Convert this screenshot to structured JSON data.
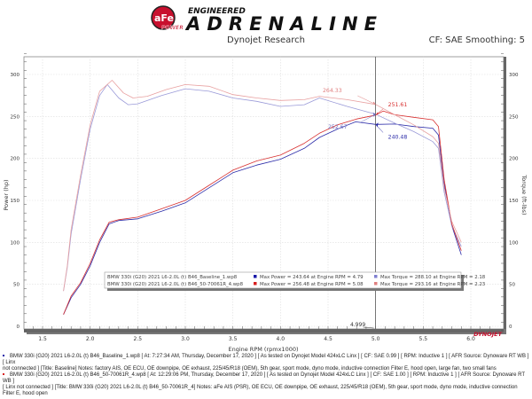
{
  "header": {
    "logo_brand": "aFe POWER",
    "logo_line1": "ENGINEERED",
    "logo_line2": "ADRENALINE",
    "subtitle": "Dynojet Research",
    "correction": "CF: SAE Smoothing: 5"
  },
  "chart_data": {
    "type": "line",
    "xlabel": "Engine RPM (rpmx1000)",
    "ylabel_left": "Power (hp)",
    "ylabel_right": "Torque (ft-lbs)",
    "xlim": [
      1.3,
      6.3
    ],
    "ylim": [
      -10,
      330
    ],
    "x_ticks": [
      "1.5",
      "2.0",
      "2.5",
      "3.0",
      "3.5",
      "4.0",
      "4.5",
      "5.0",
      "5.5",
      "6.0"
    ],
    "y_ticks": [
      "0",
      "50",
      "100",
      "150",
      "200",
      "250",
      "300"
    ],
    "grid": true,
    "cursor": {
      "x": 4.999,
      "label": "4.999"
    },
    "series": [
      {
        "name": "BMW 330i (G20) 2021 L6-2.0L (t) B46_Baseline_1.wp8",
        "measure": "power",
        "color": "#2b2ba8",
        "x": [
          1.72,
          1.76,
          1.8,
          1.9,
          2.0,
          2.1,
          2.2,
          2.3,
          2.5,
          2.75,
          3.0,
          3.25,
          3.5,
          3.75,
          4.0,
          4.25,
          4.41,
          4.6,
          4.79,
          5.0,
          5.2,
          5.4,
          5.6,
          5.66,
          5.72,
          5.8,
          5.9
        ],
        "y": [
          14,
          24,
          34,
          50,
          72,
          100,
          122,
          126,
          128,
          137,
          147,
          165,
          183,
          192,
          199,
          212,
          225,
          235,
          243.64,
          240.48,
          241,
          238,
          236,
          228,
          170,
          120,
          85
        ]
      },
      {
        "name": "BMW 330i (G20) 2021 L6-2.0L (t) B46_Baseline_1.wp8",
        "measure": "torque",
        "color": "#9a9ad8",
        "x": [
          1.72,
          1.76,
          1.8,
          1.9,
          2.0,
          2.1,
          2.18,
          2.3,
          2.4,
          2.5,
          2.75,
          3.0,
          3.25,
          3.5,
          3.75,
          4.0,
          4.25,
          4.41,
          4.7,
          5.0,
          5.2,
          5.4,
          5.6,
          5.66,
          5.72,
          5.8,
          5.9
        ],
        "y": [
          42,
          70,
          110,
          175,
          235,
          275,
          288.1,
          272,
          264,
          265,
          275,
          283,
          280,
          272,
          268,
          262,
          264,
          272,
          262,
          252.67,
          242,
          232,
          220,
          212,
          160,
          120,
          95
        ]
      },
      {
        "name": "BMW 330i (G20) 2021 L6-2.0L (t) B46_50-70061R_4.wp8",
        "measure": "power",
        "color": "#d83030",
        "x": [
          1.72,
          1.76,
          1.8,
          1.9,
          2.0,
          2.1,
          2.2,
          2.3,
          2.5,
          2.75,
          3.0,
          3.25,
          3.5,
          3.75,
          4.0,
          4.25,
          4.41,
          4.6,
          4.8,
          5.0,
          5.08,
          5.2,
          5.4,
          5.6,
          5.66,
          5.72,
          5.8,
          5.9
        ],
        "y": [
          14,
          25,
          36,
          52,
          75,
          103,
          124,
          127,
          130,
          140,
          150,
          168,
          186,
          197,
          204,
          218,
          230,
          240,
          247,
          251.61,
          256.48,
          252,
          249,
          246,
          238,
          175,
          122,
          90
        ]
      },
      {
        "name": "BMW 330i (G20) 2021 L6-2.0L (t) B46_50-70061R_4.wp8",
        "measure": "torque",
        "color": "#e8a0a0",
        "x": [
          1.72,
          1.76,
          1.8,
          1.9,
          2.0,
          2.1,
          2.23,
          2.35,
          2.45,
          2.6,
          2.8,
          3.0,
          3.25,
          3.5,
          3.75,
          4.0,
          4.25,
          4.41,
          4.7,
          5.0,
          5.2,
          5.4,
          5.6,
          5.66,
          5.72,
          5.8,
          5.9
        ],
        "y": [
          42,
          72,
          115,
          180,
          240,
          280,
          293.16,
          278,
          272,
          274,
          282,
          288,
          286,
          276,
          272,
          269,
          270,
          274,
          270,
          264.33,
          252,
          240,
          226,
          218,
          165,
          125,
          100
        ]
      }
    ],
    "annotations": [
      {
        "label": "264.33",
        "x": 5.0,
        "y": 264.33,
        "color": "#e08080"
      },
      {
        "label": "251.61",
        "x": 5.0,
        "y": 251.61,
        "color": "#d83030"
      },
      {
        "label": "252.67",
        "x": 5.0,
        "y": 252.67,
        "color": "#7070c0"
      },
      {
        "label": "240.48",
        "x": 5.0,
        "y": 240.48,
        "color": "#2b2ba8"
      }
    ],
    "legend": {
      "placement": "bottom-center",
      "rows": [
        {
          "run": "BMW 330i (G20) 2021 L6-2.0L (t) B46_Baseline_1.wp8",
          "power": "Max Power = 243.64 at Engine RPM = 4.79",
          "torque": "Max Torque = 288.10 at Engine RPM = 2.18",
          "power_color": "#1a1aa8",
          "torque_color": "#8080d0"
        },
        {
          "run": "BMW 330i (G20) 2021 L6-2.0L (t) B46_50-70061R_4.wp8",
          "power": "Max Power = 256.48 at Engine RPM = 5.08",
          "torque": "Max Torque = 293.16 at Engine RPM = 2.23",
          "power_color": "#d82020",
          "torque_color": "#e08080"
        }
      ]
    },
    "watermark": "DYNOJET"
  },
  "footer": {
    "run1_line1": "BMW 330i (G20) 2021 L6-2.0L (t) B46_Baseline_1.wp8 [ At: 7:27:34 AM, Thursday, December 17, 2020 ] [ As tested on Dynojet Model 424xLC Linx ] [ CF: SAE 0.99 ] [ RPM: Inductive 1 ] [ AFR Source: Dynoware RT WB ] [ Linx",
    "run1_line2": "not connected ] [Title: Baseline]  Notes: factory AIS, OE ECU, OE downpipe, OE exhaust, 225/45/R18 (OEM), 5th gear, sport mode, dyno mode, inductive connection Filter E, hood open, large fan, two small fans",
    "run2_line1": "BMW 330i (G20) 2021 L6-2.0L (t) B46_50-70061R_4.wp8 [ At: 12:29:06 PM, Thursday, December 17, 2020 ] [ As tested on Dynojet Model 424xLC Linx ] [ CF: SAE 1.00 ] [ RPM: Inductive 1 ] [ AFR Source: Dynoware RT WB ]",
    "run2_line2": "[ Linx not connected ] [Title: BMW 330i (G20) 2021 L6-2.0L (t) B46_50-70061R_4]  Notes: aFe AIS (PSR), OE ECU, OE downpipe, OE exhaust, 225/45/R18 (OEM), 5th gear, sport mode, dyno mode, inductive connection Filter E, hood open",
    "run1_color": "#1a1aa8",
    "run2_color": "#d82020"
  }
}
